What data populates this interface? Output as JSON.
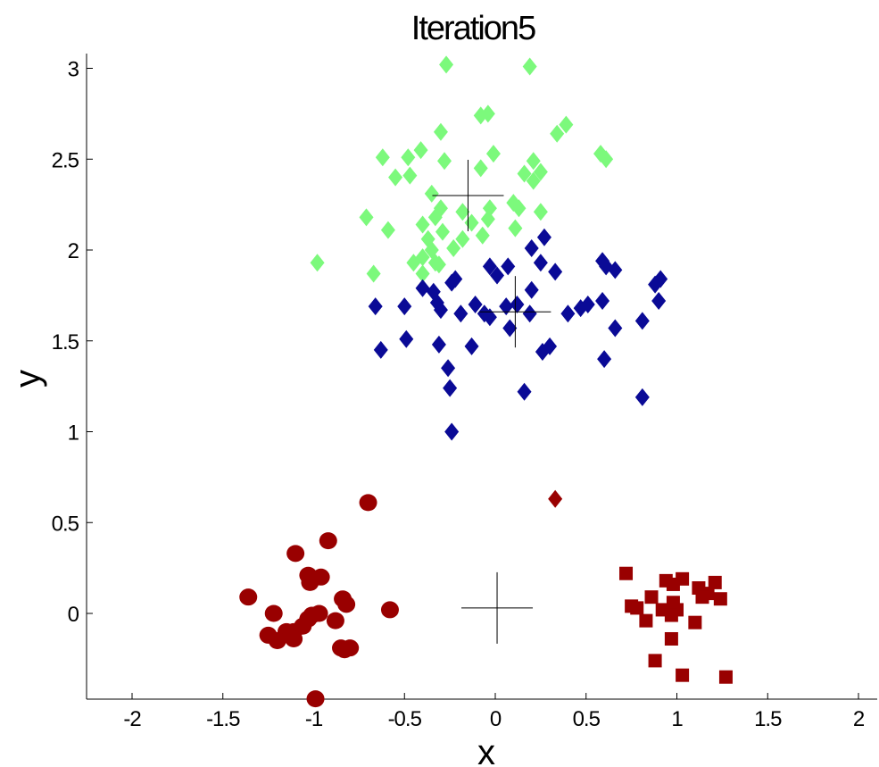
{
  "chart_data": {
    "type": "scatter",
    "title": "Iteration5",
    "xlabel": "x",
    "ylabel": "y",
    "xlim": [
      -2.25,
      2.1
    ],
    "ylim": [
      -0.47,
      3.05
    ],
    "xticks": [
      -2,
      -1.5,
      -1,
      -0.5,
      0,
      0.5,
      1,
      1.5,
      2
    ],
    "xtick_labels": [
      "-2",
      "-1.5",
      "-1",
      "-0.5",
      "0",
      "0.5",
      "1",
      "1.5",
      "2"
    ],
    "yticks": [
      0,
      0.5,
      1,
      1.5,
      2,
      2.5,
      3
    ],
    "ytick_labels": [
      "0",
      "0.5",
      "1",
      "1.5",
      "2",
      "2.5",
      "3"
    ],
    "grid": false,
    "series": [
      {
        "marker": "diamond",
        "color": "#7cf97c",
        "points": [
          [
            -0.27,
            3.02
          ],
          [
            0.19,
            3.01
          ],
          [
            -0.08,
            2.74
          ],
          [
            -0.04,
            2.75
          ],
          [
            0.39,
            2.69
          ],
          [
            0.34,
            2.64
          ],
          [
            -0.3,
            2.65
          ],
          [
            -0.41,
            2.55
          ],
          [
            -0.01,
            2.53
          ],
          [
            -0.62,
            2.51
          ],
          [
            -0.48,
            2.51
          ],
          [
            -0.28,
            2.49
          ],
          [
            -0.08,
            2.45
          ],
          [
            0.58,
            2.53
          ],
          [
            0.61,
            2.5
          ],
          [
            0.21,
            2.49
          ],
          [
            0.25,
            2.43
          ],
          [
            0.16,
            2.42
          ],
          [
            -0.55,
            2.4
          ],
          [
            -0.47,
            2.41
          ],
          [
            0.21,
            2.38
          ],
          [
            -0.35,
            2.31
          ],
          [
            -0.3,
            2.23
          ],
          [
            0.1,
            2.26
          ],
          [
            -0.03,
            2.23
          ],
          [
            -0.33,
            2.18
          ],
          [
            0.25,
            2.21
          ],
          [
            -0.71,
            2.18
          ],
          [
            0.13,
            2.23
          ],
          [
            -0.18,
            2.21
          ],
          [
            -0.4,
            2.14
          ],
          [
            -0.13,
            2.15
          ],
          [
            -0.04,
            2.17
          ],
          [
            -0.07,
            2.08
          ],
          [
            0.11,
            2.12
          ],
          [
            -0.59,
            2.11
          ],
          [
            -0.37,
            2.06
          ],
          [
            -0.29,
            2.1
          ],
          [
            -0.18,
            2.06
          ],
          [
            -0.23,
            2.01
          ],
          [
            -0.35,
            2.0
          ],
          [
            -0.4,
            1.96
          ],
          [
            -0.33,
            1.93
          ],
          [
            -0.45,
            1.93
          ],
          [
            -0.31,
            1.92
          ],
          [
            -0.4,
            1.87
          ],
          [
            -0.67,
            1.87
          ],
          [
            -0.98,
            1.93
          ]
        ]
      },
      {
        "marker": "diamond",
        "color": "#0a0a96",
        "points": [
          [
            0.27,
            2.07
          ],
          [
            0.2,
            2.01
          ],
          [
            -0.03,
            1.91
          ],
          [
            0.07,
            1.91
          ],
          [
            0.25,
            1.93
          ],
          [
            0.59,
            1.94
          ],
          [
            0.61,
            1.91
          ],
          [
            0.66,
            1.89
          ],
          [
            0.33,
            1.88
          ],
          [
            0.01,
            1.86
          ],
          [
            -0.22,
            1.84
          ],
          [
            -0.24,
            1.82
          ],
          [
            -0.4,
            1.79
          ],
          [
            -0.34,
            1.77
          ],
          [
            0.2,
            1.78
          ],
          [
            0.88,
            1.81
          ],
          [
            0.91,
            1.84
          ],
          [
            -0.66,
            1.69
          ],
          [
            -0.5,
            1.69
          ],
          [
            -0.32,
            1.71
          ],
          [
            -0.3,
            1.67
          ],
          [
            -0.19,
            1.65
          ],
          [
            -0.11,
            1.7
          ],
          [
            -0.06,
            1.65
          ],
          [
            0.06,
            1.69
          ],
          [
            0.12,
            1.7
          ],
          [
            0.19,
            1.65
          ],
          [
            0.4,
            1.65
          ],
          [
            0.47,
            1.68
          ],
          [
            0.51,
            1.7
          ],
          [
            0.59,
            1.72
          ],
          [
            0.9,
            1.72
          ],
          [
            -0.03,
            1.63
          ],
          [
            0.08,
            1.57
          ],
          [
            0.66,
            1.57
          ],
          [
            0.81,
            1.61
          ],
          [
            -0.49,
            1.51
          ],
          [
            -0.31,
            1.48
          ],
          [
            -0.13,
            1.47
          ],
          [
            0.3,
            1.47
          ],
          [
            0.26,
            1.44
          ],
          [
            -0.63,
            1.45
          ],
          [
            0.6,
            1.4
          ],
          [
            -0.26,
            1.35
          ],
          [
            -0.25,
            1.24
          ],
          [
            0.16,
            1.22
          ],
          [
            0.81,
            1.19
          ],
          [
            -0.24,
            1.0
          ]
        ]
      },
      {
        "marker": "diamond",
        "color": "#990000",
        "points": [
          [
            0.33,
            0.63
          ]
        ]
      },
      {
        "marker": "circle",
        "color": "#990000",
        "points": [
          [
            -0.7,
            0.61
          ],
          [
            -0.92,
            0.4
          ],
          [
            -1.1,
            0.33
          ],
          [
            -1.03,
            0.21
          ],
          [
            -0.96,
            0.2
          ],
          [
            -1.02,
            0.17
          ],
          [
            -1.36,
            0.09
          ],
          [
            -0.84,
            0.08
          ],
          [
            -0.82,
            0.05
          ],
          [
            -1.22,
            0.0
          ],
          [
            -0.97,
            0.0
          ],
          [
            -1.01,
            -0.01
          ],
          [
            -1.03,
            -0.03
          ],
          [
            -0.88,
            -0.04
          ],
          [
            -0.58,
            0.02
          ],
          [
            -1.06,
            -0.07
          ],
          [
            -1.11,
            -0.1
          ],
          [
            -1.15,
            -0.1
          ],
          [
            -1.25,
            -0.12
          ],
          [
            -1.11,
            -0.14
          ],
          [
            -1.2,
            -0.15
          ],
          [
            -0.85,
            -0.19
          ],
          [
            -0.8,
            -0.19
          ],
          [
            -0.83,
            -0.2
          ],
          [
            -0.99,
            -0.47
          ]
        ]
      },
      {
        "marker": "square",
        "color": "#990000",
        "points": [
          [
            0.72,
            0.22
          ],
          [
            0.94,
            0.18
          ],
          [
            1.03,
            0.19
          ],
          [
            1.21,
            0.17
          ],
          [
            1.12,
            0.14
          ],
          [
            0.98,
            0.16
          ],
          [
            1.17,
            0.11
          ],
          [
            1.14,
            0.09
          ],
          [
            1.24,
            0.08
          ],
          [
            0.86,
            0.09
          ],
          [
            0.98,
            0.06
          ],
          [
            0.75,
            0.04
          ],
          [
            0.78,
            0.03
          ],
          [
            0.92,
            0.02
          ],
          [
            1.0,
            0.02
          ],
          [
            0.97,
            -0.01
          ],
          [
            0.83,
            -0.04
          ],
          [
            1.1,
            -0.05
          ],
          [
            0.97,
            -0.14
          ],
          [
            0.88,
            -0.26
          ],
          [
            1.03,
            -0.34
          ],
          [
            1.27,
            -0.35
          ]
        ]
      }
    ],
    "centroids": [
      [
        -0.15,
        2.3
      ],
      [
        0.11,
        1.66
      ],
      [
        0.01,
        0.03
      ]
    ]
  }
}
